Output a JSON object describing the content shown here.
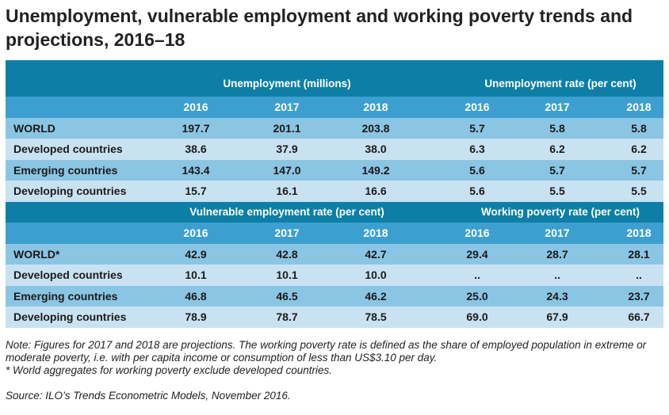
{
  "title": "Unemployment, vulnerable employment and working poverty trends and projections, 2016–18",
  "table1": {
    "group_left": "Unemployment (millions)",
    "group_right": "Unemployment rate (per cent)",
    "years": [
      "2016",
      "2017",
      "2018",
      "2016",
      "2017",
      "2018"
    ],
    "rows": [
      {
        "label": "WORLD",
        "values": [
          "197.7",
          "201.1",
          "203.8",
          "5.7",
          "5.8",
          "5.8"
        ]
      },
      {
        "label": "Developed countries",
        "values": [
          "38.6",
          "37.9",
          "38.0",
          "6.3",
          "6.2",
          "6.2"
        ]
      },
      {
        "label": "Emerging countries",
        "values": [
          "143.4",
          "147.0",
          "149.2",
          "5.6",
          "5.7",
          "5.7"
        ]
      },
      {
        "label": "Developing countries",
        "values": [
          "15.7",
          "16.1",
          "16.6",
          "5.6",
          "5.5",
          "5.5"
        ]
      }
    ]
  },
  "table2": {
    "group_left": "Vulnerable employment rate (per cent)",
    "group_right": "Working poverty rate (per cent)",
    "years": [
      "2016",
      "2017",
      "2018",
      "2016",
      "2017",
      "2018"
    ],
    "rows": [
      {
        "label": "WORLD*",
        "values": [
          "42.9",
          "42.8",
          "42.7",
          "29.4",
          "28.7",
          "28.1"
        ]
      },
      {
        "label": "Developed countries",
        "values": [
          "10.1",
          "10.1",
          "10.0",
          "..",
          "..",
          ".."
        ]
      },
      {
        "label": "Emerging countries",
        "values": [
          "46.8",
          "46.5",
          "46.2",
          "25.0",
          "24.3",
          "23.7"
        ]
      },
      {
        "label": "Developing countries",
        "values": [
          "78.9",
          "78.7",
          "78.5",
          "69.0",
          "67.9",
          "66.7"
        ]
      }
    ]
  },
  "notes": {
    "note1": "Note: Figures for 2017 and 2018 are projections. The working poverty rate is defined as the share of employed population in extreme or moderate poverty, i.e. with per capita income or consumption of less than US$3.10 per day.",
    "note2": "* World aggregates for working poverty exclude developed countries.",
    "source": "Source: ILO’s Trends Econometric Models, November 2016."
  },
  "colors": {
    "header_dark": "#0d7fa6",
    "header_year": "#3c9fd0",
    "row_dark": "#8bc5e4",
    "row_light": "#c9e2f2"
  }
}
